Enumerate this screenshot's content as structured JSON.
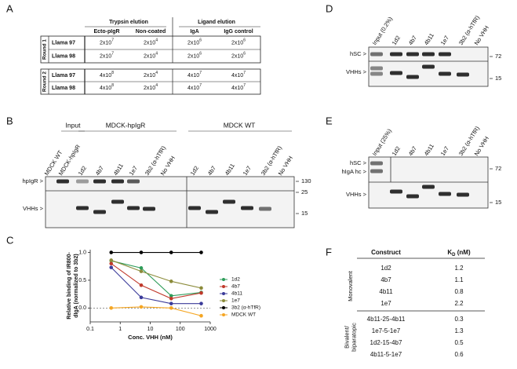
{
  "panel_letters": [
    "A",
    "B",
    "C",
    "D",
    "E",
    "F"
  ],
  "table_a": {
    "header_groups": [
      "Trypsin elution",
      "Ligand elution"
    ],
    "columns": [
      "Ecto-pIgR",
      "Non-coated",
      "IgA",
      "IgG control"
    ],
    "rounds": [
      {
        "label": "Round 1",
        "rows": [
          {
            "name": "Llama 97",
            "cells": [
              {
                "m": "2x10",
                "e": "7"
              },
              {
                "m": "2x10",
                "e": "4"
              },
              {
                "m": "2x10",
                "e": "6"
              },
              {
                "m": "2x10",
                "e": "6"
              }
            ]
          },
          {
            "name": "Llama 98",
            "cells": [
              {
                "m": "2x10",
                "e": "7"
              },
              {
                "m": "2x10",
                "e": "4"
              },
              {
                "m": "2x10",
                "e": "6"
              },
              {
                "m": "2x10",
                "e": "6"
              }
            ]
          }
        ]
      },
      {
        "label": "Round 2",
        "rows": [
          {
            "name": "Llama 97",
            "cells": [
              {
                "m": "4x10",
                "e": "8"
              },
              {
                "m": "2x10",
                "e": "4"
              },
              {
                "m": "4x10",
                "e": "7"
              },
              {
                "m": "4x10",
                "e": "7"
              }
            ]
          },
          {
            "name": "Llama 98",
            "cells": [
              {
                "m": "4x10",
                "e": "8"
              },
              {
                "m": "2x10",
                "e": "4"
              },
              {
                "m": "4x10",
                "e": "7"
              },
              {
                "m": "4x10",
                "e": "7"
              }
            ]
          }
        ]
      }
    ]
  },
  "blot_b": {
    "groups": [
      "Input",
      "MDCK-hpIgR",
      "MDCK WT"
    ],
    "lanes": [
      "MDCK WT",
      "MDCK-hpIgR",
      "1d2",
      "4b7",
      "4b11",
      "1e7",
      "3b2 (α-hTfR)",
      "No VHH",
      "1d2",
      "4b7",
      "4b11",
      "1e7",
      "3b2 (α-hTfR)",
      "No VHH"
    ],
    "left_labels": [
      "hpIgR >",
      "VHHs >"
    ],
    "markers": [
      "130",
      "25",
      "15"
    ]
  },
  "blot_d": {
    "lanes": [
      "Input (0.2%)",
      "1d2",
      "4b7",
      "4b11",
      "1e7",
      "3b2 (α-hTfR)",
      "No VHH"
    ],
    "left_labels": [
      "hSC >",
      "VHHs >"
    ],
    "markers": [
      "72",
      "15"
    ]
  },
  "blot_e": {
    "lanes": [
      "Input (25%)",
      "1d2",
      "4b7",
      "4b11",
      "1e7",
      "3b2 (α-hTfR)",
      "No VHH"
    ],
    "left_labels": [
      "hSC >",
      "hIgA hc >",
      "VHHs >"
    ],
    "markers": [
      "72",
      "15"
    ]
  },
  "table_f": {
    "construct": "Construct",
    "kd": "K",
    "kd_sub": "D",
    "kd_unit": " (nM)",
    "groups": [
      {
        "label": [
          "Monovalent"
        ],
        "rows": [
          [
            "1d2",
            1.2
          ],
          [
            "4b7",
            1.1
          ],
          [
            "4b11",
            0.8
          ],
          [
            "1e7",
            2.2
          ]
        ]
      },
      {
        "label": [
          "Bivalent/",
          "biparatopic"
        ],
        "rows": [
          [
            "4b11-25-4b11",
            0.3
          ],
          [
            "1e7-5-1e7",
            1.3
          ],
          [
            "1d2-15-4b7",
            0.5
          ],
          [
            "4b11-5-1e7",
            0.6
          ]
        ]
      }
    ]
  },
  "chart_data": {
    "type": "line",
    "xlabel": "Conc. VHH (nM)",
    "ylabel": [
      "Relative binding of IR800-",
      "dIgA (normalized to 3b2)"
    ],
    "log_x": true,
    "x": [
      0.5,
      5,
      50,
      500
    ],
    "xlim": [
      0.1,
      1000
    ],
    "xticks": [
      0.1,
      1,
      10,
      100,
      1000
    ],
    "ylim": [
      -0.25,
      1.05
    ],
    "yticks": [
      {
        "value": 0,
        "label": "0.0"
      },
      {
        "value": 0.5,
        "label": "0.5"
      },
      {
        "value": 1,
        "label": "1.0"
      }
    ],
    "zero_line": true,
    "series": [
      {
        "name": "1d2",
        "color": "#2e9c5a",
        "values": [
          0.85,
          0.72,
          0.22,
          0.28
        ]
      },
      {
        "name": "4b7",
        "color": "#c0392b",
        "values": [
          0.8,
          0.41,
          0.17,
          0.27
        ]
      },
      {
        "name": "4b11",
        "color": "#3b3b9a",
        "values": [
          0.73,
          0.19,
          0.08,
          0.08
        ]
      },
      {
        "name": "1e7",
        "color": "#8b8b3a",
        "values": [
          0.86,
          0.66,
          0.48,
          0.36
        ]
      },
      {
        "name": "3b2 (α-hTfR)",
        "color": "#000000",
        "values": [
          1,
          1,
          1,
          1
        ]
      },
      {
        "name": "MDCK WT",
        "color": "#f5a623",
        "values": [
          0,
          0.02,
          0,
          -0.14
        ]
      }
    ]
  }
}
